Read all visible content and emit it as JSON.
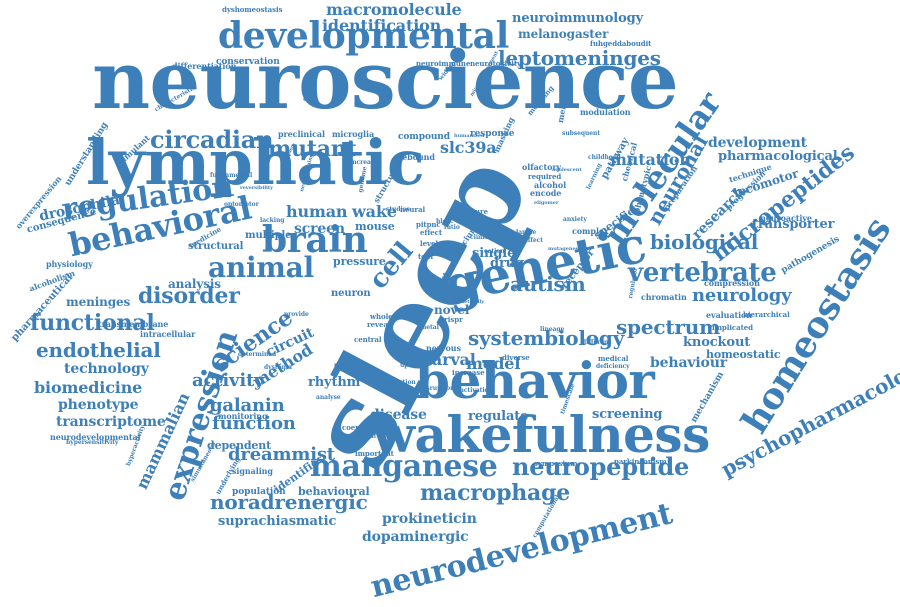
{
  "word_color": "#3d7fb8",
  "words": [
    {
      "text": "neuroscience",
      "size": 80
    },
    {
      "text": "lymphatic",
      "size": 62
    },
    {
      "text": "sleep",
      "size": 115
    },
    {
      "text": "behavior",
      "size": 50
    },
    {
      "text": "wakefulness",
      "size": 50
    },
    {
      "text": "genetic",
      "size": 50
    },
    {
      "text": "developmental",
      "size": 36
    },
    {
      "text": "homeostasis",
      "size": 36
    },
    {
      "text": "behavioral",
      "size": 32
    },
    {
      "text": "regulation",
      "size": 30
    },
    {
      "text": "brain",
      "size": 36
    },
    {
      "text": "animal",
      "size": 28
    },
    {
      "text": "molecular",
      "size": 32
    },
    {
      "text": "vertebrate",
      "size": 26
    },
    {
      "text": "manganese",
      "size": 30
    },
    {
      "text": "neuropeptide",
      "size": 24
    },
    {
      "text": "neurodevelopment",
      "size": 30
    },
    {
      "text": "expression",
      "size": 30
    },
    {
      "text": "circadian",
      "size": 24
    },
    {
      "text": "mutant",
      "size": 22
    },
    {
      "text": "functional",
      "size": 22
    },
    {
      "text": "disorder",
      "size": 22
    },
    {
      "text": "endothelial",
      "size": 20
    },
    {
      "text": "psychopharmacology",
      "size": 20
    },
    {
      "text": "micropeptides",
      "size": 22
    },
    {
      "text": "neuronal",
      "size": 20
    },
    {
      "text": "biological",
      "size": 20
    },
    {
      "text": "autism",
      "size": 20
    },
    {
      "text": "spectrum",
      "size": 20
    },
    {
      "text": "neurology",
      "size": 18
    },
    {
      "text": "systembiology",
      "size": 20
    },
    {
      "text": "macrophage",
      "size": 22
    },
    {
      "text": "noradrenergic",
      "size": 20
    },
    {
      "text": "function",
      "size": 18
    },
    {
      "text": "dreammist",
      "size": 18
    },
    {
      "text": "activity",
      "size": 18
    },
    {
      "text": "galanin",
      "size": 18
    },
    {
      "text": "science",
      "size": 22
    },
    {
      "text": "leptomeninges",
      "size": 20
    },
    {
      "text": "identification",
      "size": 16
    },
    {
      "text": "macromolecule",
      "size": 16
    },
    {
      "text": "neuroimmunology",
      "size": 13
    },
    {
      "text": "melanogaster",
      "size": 12
    },
    {
      "text": "mutation",
      "size": 16
    },
    {
      "text": "development",
      "size": 14
    },
    {
      "text": "pharmacological",
      "size": 13
    },
    {
      "text": "slc39a",
      "size": 16
    },
    {
      "text": "human",
      "size": 16
    },
    {
      "text": "wake",
      "size": 16
    },
    {
      "text": "screen",
      "size": 14
    },
    {
      "text": "cell",
      "size": 26
    },
    {
      "text": "drosophila",
      "size": 14
    },
    {
      "text": "behaviour",
      "size": 14
    },
    {
      "text": "knockout",
      "size": 13
    },
    {
      "text": "homeostatic",
      "size": 11
    },
    {
      "text": "model",
      "size": 16
    },
    {
      "text": "larval",
      "size": 16
    },
    {
      "text": "method",
      "size": 16
    },
    {
      "text": "circuit",
      "size": 14
    },
    {
      "text": "rhythm",
      "size": 13
    },
    {
      "text": "technology",
      "size": 14
    },
    {
      "text": "biomedicine",
      "size": 16
    },
    {
      "text": "phenotype",
      "size": 14
    },
    {
      "text": "transcriptome",
      "size": 14
    },
    {
      "text": "mammalian",
      "size": 16
    },
    {
      "text": "analysis",
      "size": 12
    },
    {
      "text": "meninges",
      "size": 12
    },
    {
      "text": "transporter",
      "size": 13
    },
    {
      "text": "research",
      "size": 14
    },
    {
      "text": "locomotor",
      "size": 12
    },
    {
      "text": "disease",
      "size": 14
    },
    {
      "text": "regulate",
      "size": 13
    },
    {
      "text": "screening",
      "size": 13
    },
    {
      "text": "prokineticin",
      "size": 14
    },
    {
      "text": "dopaminergic",
      "size": 14
    },
    {
      "text": "suprachiasmatic",
      "size": 13
    },
    {
      "text": "behavioural",
      "size": 11
    },
    {
      "text": "population",
      "size": 9
    },
    {
      "text": "identifies",
      "size": 11
    },
    {
      "text": "dependent",
      "size": 11
    },
    {
      "text": "drug",
      "size": 13
    },
    {
      "text": "single",
      "size": 13
    },
    {
      "text": "neuron",
      "size": 10
    },
    {
      "text": "novel",
      "size": 12
    },
    {
      "text": "mouse",
      "size": 11
    },
    {
      "text": "pressure",
      "size": 11
    },
    {
      "text": "multiple",
      "size": 10
    },
    {
      "text": "structural",
      "size": 10
    },
    {
      "text": "conservation",
      "size": 9
    },
    {
      "text": "differentiation",
      "size": 8
    },
    {
      "text": "dyshomeostasis",
      "size": 7
    },
    {
      "text": "fuhgeddaboudit",
      "size": 7
    },
    {
      "text": "neurotoxicity",
      "size": 7
    },
    {
      "text": "neuroimmune",
      "size": 7
    },
    {
      "text": "compound",
      "size": 9
    },
    {
      "text": "preclinical",
      "size": 8
    },
    {
      "text": "microglia",
      "size": 8
    },
    {
      "text": "response",
      "size": 9
    },
    {
      "text": "rebound",
      "size": 8
    },
    {
      "text": "alcohol",
      "size": 8
    },
    {
      "text": "encode",
      "size": 8
    },
    {
      "text": "olfactory",
      "size": 8
    },
    {
      "text": "complex",
      "size": 8
    },
    {
      "text": "specific",
      "size": 11
    },
    {
      "text": "receptor",
      "size": 10
    },
    {
      "text": "pathway",
      "size": 10
    },
    {
      "text": "neuroactive",
      "size": 8
    },
    {
      "text": "pathogenesis",
      "size": 9
    },
    {
      "text": "compression",
      "size": 8
    },
    {
      "text": "evaluation",
      "size": 8
    },
    {
      "text": "hierarchical",
      "size": 7
    },
    {
      "text": "chromatin",
      "size": 8
    },
    {
      "text": "implicated",
      "size": 7
    },
    {
      "text": "mechanism",
      "size": 9
    },
    {
      "text": "parkinsonism",
      "size": 7
    },
    {
      "text": "symposium",
      "size": 7
    },
    {
      "text": "monitoring",
      "size": 8
    },
    {
      "text": "signaling",
      "size": 8
    },
    {
      "text": "important",
      "size": 7
    },
    {
      "text": "coeruleus",
      "size": 7
    },
    {
      "text": "identity",
      "size": 7
    },
    {
      "text": "nervous",
      "size": 8
    },
    {
      "text": "increase",
      "size": 7
    },
    {
      "text": "diverse",
      "size": 7
    },
    {
      "text": "medical",
      "size": 7
    },
    {
      "text": "deficiency",
      "size": 6
    },
    {
      "text": "neurodevelopmental",
      "size": 8
    },
    {
      "text": "hypersensitivity",
      "size": 6
    },
    {
      "text": "overexpression",
      "size": 8
    },
    {
      "text": "consequence",
      "size": 10
    },
    {
      "text": "understanding",
      "size": 9
    },
    {
      "text": "stimulant",
      "size": 8
    },
    {
      "text": "physiology",
      "size": 8
    },
    {
      "text": "alcoholism",
      "size": 8
    },
    {
      "text": "pharmaceutical",
      "size": 10
    },
    {
      "text": "transmembrane",
      "size": 8
    },
    {
      "text": "intracellular",
      "size": 8
    },
    {
      "text": "modulation",
      "size": 8
    },
    {
      "text": "subsequent",
      "size": 6
    },
    {
      "text": "childhood",
      "size": 6
    },
    {
      "text": "phenotypic",
      "size": 8
    },
    {
      "text": "chemical",
      "size": 8
    },
    {
      "text": "preparation",
      "size": 8
    },
    {
      "text": "technique",
      "size": 8
    },
    {
      "text": "progression",
      "size": 8
    },
    {
      "text": "melanopsin",
      "size": 8
    },
    {
      "text": "modeling",
      "size": 7
    },
    {
      "text": "masking",
      "size": 8
    },
    {
      "text": "characteristic",
      "size": 6
    },
    {
      "text": "widespread",
      "size": 6
    },
    {
      "text": "structure",
      "size": 8
    },
    {
      "text": "calcium",
      "size": 8
    },
    {
      "text": "feature",
      "size": 7
    },
    {
      "text": "effect",
      "size": 7
    },
    {
      "text": "level",
      "size": 7
    },
    {
      "text": "tool",
      "size": 7
    },
    {
      "text": "whole",
      "size": 7
    },
    {
      "text": "central",
      "size": 7
    },
    {
      "text": "reveal",
      "size": 7
    },
    {
      "text": "crispr",
      "size": 7
    },
    {
      "text": "metal",
      "size": 6
    },
    {
      "text": "light",
      "size": 7
    },
    {
      "text": "type",
      "size": 7
    },
    {
      "text": "uptake",
      "size": 6
    },
    {
      "text": "induction",
      "size": 6
    },
    {
      "text": "disruption",
      "size": 6
    },
    {
      "text": "activation",
      "size": 6
    },
    {
      "text": "timescale",
      "size": 6
    },
    {
      "text": "different",
      "size": 6
    },
    {
      "text": "lineage",
      "size": 6
    },
    {
      "text": "protein",
      "size": 6
    },
    {
      "text": "analyse",
      "size": 6
    },
    {
      "text": "dystonia",
      "size": 6
    },
    {
      "text": "determined",
      "size": 6
    },
    {
      "text": "provide",
      "size": 6
    },
    {
      "text": "regulator",
      "size": 6
    },
    {
      "text": "learning",
      "size": 6
    },
    {
      "text": "required",
      "size": 7
    },
    {
      "text": "anxiety",
      "size": 6
    },
    {
      "text": "larvae",
      "size": 6
    },
    {
      "text": "affect",
      "size": 6
    },
    {
      "text": "signature",
      "size": 6
    },
    {
      "text": "computational",
      "size": 6
    },
    {
      "text": "underlying",
      "size": 7
    },
    {
      "text": "simultaneous",
      "size": 6
    },
    {
      "text": "hyperactivity",
      "size": 6
    },
    {
      "text": "medicine",
      "size": 7
    },
    {
      "text": "fundamental",
      "size": 6
    },
    {
      "text": "optomotor",
      "size": 6
    },
    {
      "text": "embryonic",
      "size": 6
    },
    {
      "text": "neural",
      "size": 7
    },
    {
      "text": "studies",
      "size": 6
    },
    {
      "text": "memory",
      "size": 6
    },
    {
      "text": "genome",
      "size": 6
    },
    {
      "text": "lacking",
      "size": 6
    },
    {
      "text": "ratio",
      "size": 6
    },
    {
      "text": "dimst",
      "size": 7
    },
    {
      "text": "pitpnc",
      "size": 7
    },
    {
      "text": "hlecc",
      "size": 6
    },
    {
      "text": "cation",
      "size": 6
    },
    {
      "text": "increased",
      "size": 6
    },
    {
      "text": "humanized",
      "size": 5
    },
    {
      "text": "microenvironment",
      "size": 5
    },
    {
      "text": "eligomer",
      "size": 5
    },
    {
      "text": "adolescent",
      "size": 5
    },
    {
      "text": "reversibility",
      "size": 5
    },
    {
      "text": "organism",
      "size": 5
    },
    {
      "text": "neuroimaging",
      "size": 5
    },
    {
      "text": "clinical",
      "size": 6
    },
    {
      "text": "mutagenesis",
      "size": 5
    },
    {
      "text": "genetically",
      "size": 5
    }
  ]
}
